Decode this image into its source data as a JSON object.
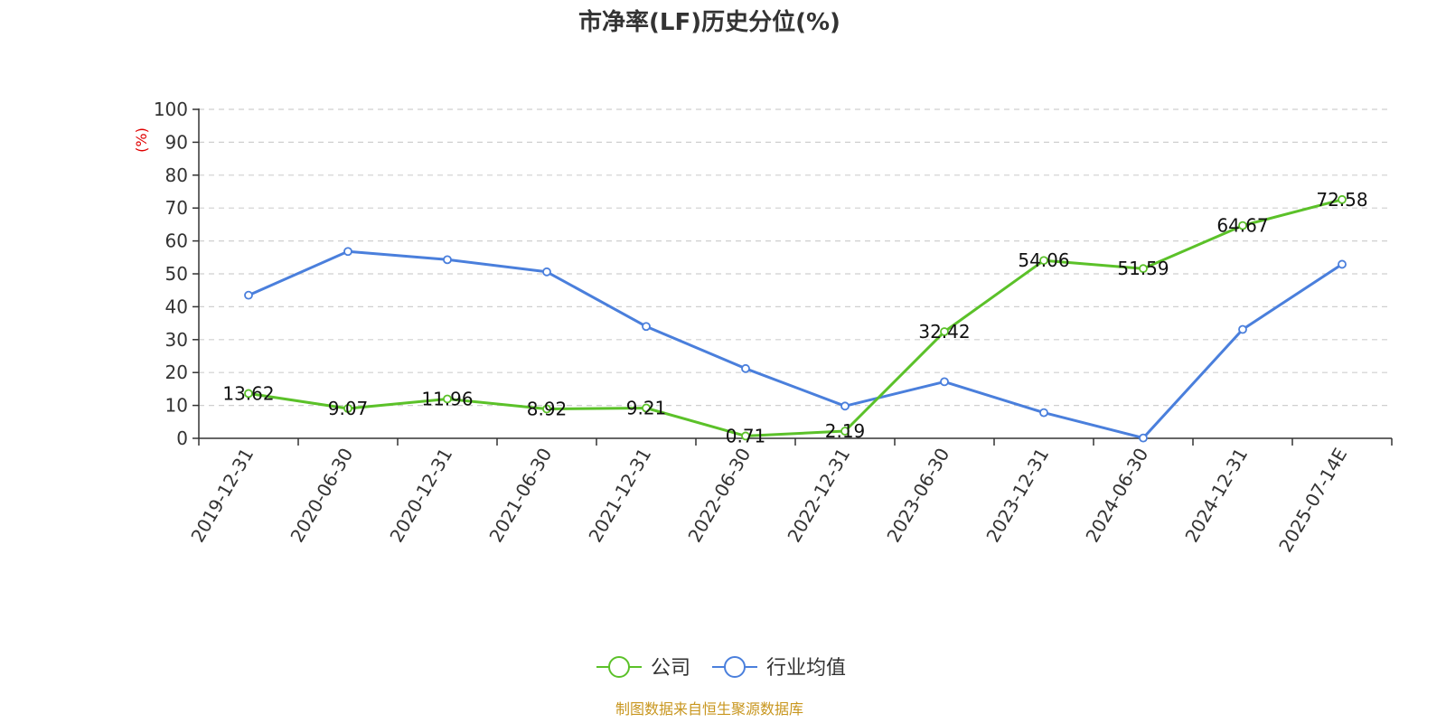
{
  "chart_data": {
    "type": "line",
    "title": "市净率(LF)历史分位(%)",
    "ylabel": "(%)",
    "ylim": [
      0,
      100
    ],
    "yticks": [
      0,
      10,
      20,
      30,
      40,
      50,
      60,
      70,
      80,
      90,
      100
    ],
    "grid": true,
    "legend_position": "bottom",
    "categories": [
      "2019-12-31",
      "2020-06-30",
      "2020-12-31",
      "2021-06-30",
      "2021-12-31",
      "2022-06-30",
      "2022-12-31",
      "2023-06-30",
      "2023-12-31",
      "2024-06-30",
      "2024-12-31",
      "2025-07-14E"
    ],
    "series": [
      {
        "name": "公司",
        "color": "#5bc129",
        "show_labels": true,
        "values": [
          13.62,
          9.07,
          11.96,
          8.92,
          9.21,
          0.71,
          2.19,
          32.42,
          54.06,
          51.59,
          64.67,
          72.58
        ],
        "labels": [
          "13.62",
          "9.07",
          "11.96",
          "8.92",
          "9.21",
          "0.71",
          "2.19",
          "32.42",
          "54.06",
          "51.59",
          "64.67",
          "72.58"
        ]
      },
      {
        "name": "行业均值",
        "color": "#4a7fdc",
        "show_labels": false,
        "values": [
          43.5,
          56.8,
          54.3,
          50.6,
          34.0,
          21.2,
          9.8,
          17.2,
          7.8,
          0.1,
          33.1,
          52.9
        ]
      }
    ],
    "source": "制图数据来自恒生聚源数据库",
    "source_color": "#c8961e",
    "ylabel_color": "#e00000"
  }
}
